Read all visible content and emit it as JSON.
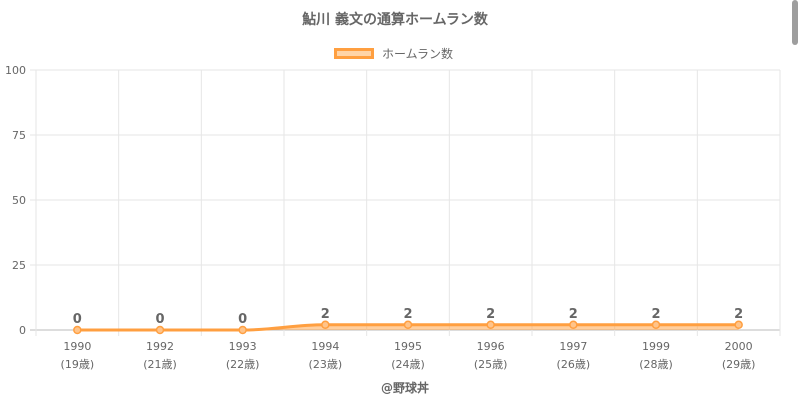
{
  "chart_data": {
    "type": "line",
    "title": "鮎川 義文の通算ホームラン数",
    "categories": [
      "1990",
      "1992",
      "1993",
      "1994",
      "1995",
      "1996",
      "1997",
      "1999",
      "2000"
    ],
    "sublabels": [
      "(19歳)",
      "(21歳)",
      "(22歳)",
      "(23歳)",
      "(24歳)",
      "(25歳)",
      "(26歳)",
      "(28歳)",
      "(29歳)"
    ],
    "series": [
      {
        "name": "ホームラン数",
        "values": [
          0,
          0,
          0,
          2,
          2,
          2,
          2,
          2,
          2
        ]
      }
    ],
    "ylim": [
      0,
      100
    ],
    "yticks": [
      0,
      25,
      50,
      75,
      100
    ],
    "grid": true,
    "legend_position": "top",
    "colors": {
      "line": "#ff9f40",
      "fill": "rgba(255,159,64,0.5)",
      "grid": "#e6e6e6"
    }
  },
  "credit": "@野球丼"
}
